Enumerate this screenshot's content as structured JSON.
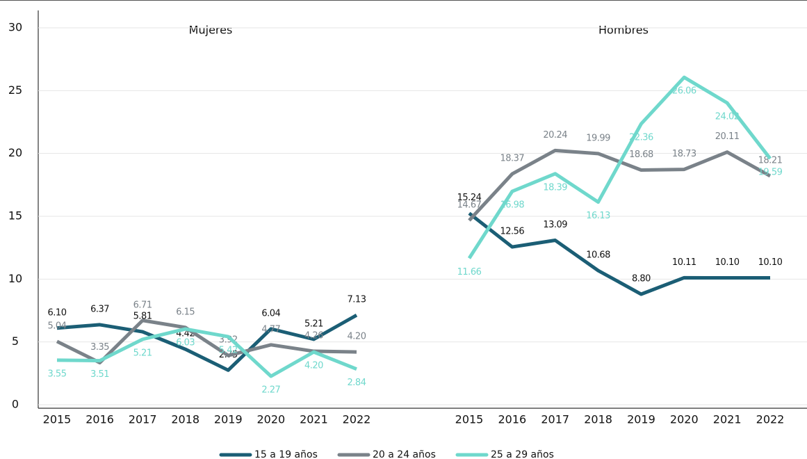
{
  "chart_data": [
    {
      "type": "line",
      "title": "Mujeres",
      "categories": [
        "2015",
        "2016",
        "2017",
        "2018",
        "2019",
        "2020",
        "2021",
        "2022"
      ],
      "ylim": [
        0,
        30
      ],
      "yticks": [
        0,
        5,
        10,
        15,
        20,
        25,
        30
      ],
      "series": [
        {
          "name": "15 a 19 años",
          "color": "#1b5e75",
          "values": [
            6.1,
            6.37,
            5.81,
            4.42,
            2.75,
            6.04,
            5.21,
            7.13
          ],
          "value_labels": [
            "6.10",
            "6.37",
            "5.81",
            "4.42",
            "2.75",
            "6.04",
            "5.21",
            "7.13"
          ]
        },
        {
          "name": "20 a 24 años",
          "color": "#7a8289",
          "values": [
            5.04,
            3.35,
            6.71,
            6.15,
            3.92,
            4.77,
            4.26,
            4.2
          ],
          "value_labels": [
            "5.04",
            "3.35",
            "6.71",
            "6.15",
            "3.92",
            "4.77",
            "4.26",
            "4.20"
          ]
        },
        {
          "name": "25 a 29 años",
          "color": "#6fd8cc",
          "values": [
            3.55,
            3.51,
            5.21,
            6.03,
            5.42,
            2.27,
            4.2,
            2.84
          ],
          "value_labels": [
            "3.55",
            "3.51",
            "5.21",
            "6.03",
            "5.42",
            "2.27",
            "4.20",
            "2.84"
          ]
        }
      ]
    },
    {
      "type": "line",
      "title": "Hombres",
      "categories": [
        "2015",
        "2016",
        "2017",
        "2018",
        "2019",
        "2020",
        "2021",
        "2022"
      ],
      "ylim": [
        0,
        30
      ],
      "yticks": [
        0,
        5,
        10,
        15,
        20,
        25,
        30
      ],
      "series": [
        {
          "color": "#1b5e75",
          "values": [
            15.24,
            12.56,
            13.09,
            10.68,
            8.8,
            10.11,
            10.1,
            10.1
          ],
          "value_labels": [
            "15.24",
            "12.56",
            "13.09",
            "10.68",
            "8.80",
            "10.11",
            "10.10",
            "10.10"
          ]
        },
        {
          "color": "#7a8289",
          "values": [
            14.67,
            18.37,
            20.24,
            19.99,
            18.68,
            18.73,
            20.11,
            18.21
          ],
          "value_labels": [
            "14.67",
            "18.37",
            "20.24",
            "19.99",
            "18.68",
            "18.73",
            "20.11",
            "18.21"
          ]
        },
        {
          "color": "#6fd8cc",
          "values": [
            11.66,
            16.98,
            18.39,
            16.13,
            22.36,
            26.06,
            24.02,
            19.59
          ],
          "value_labels": [
            "11.66",
            "16.98",
            "18.39",
            "16.13",
            "22.36",
            "26.06",
            "24.02",
            "19.59"
          ]
        }
      ]
    }
  ]
}
